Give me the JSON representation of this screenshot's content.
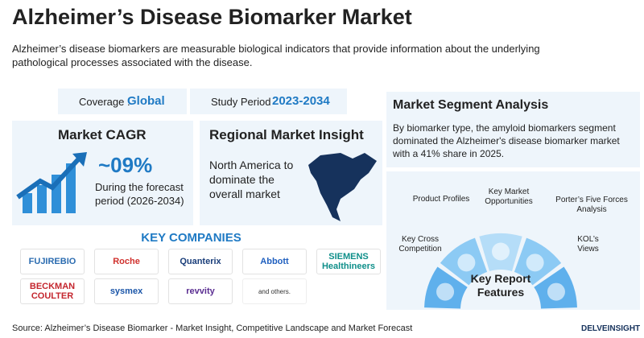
{
  "header": {
    "title": "Alzheimer’s Disease Biomarker Market",
    "description": "Alzheimer’s disease biomarkers are measurable biological indicators that provide information about the underlying pathological processes associated with the disease."
  },
  "coverage": {
    "label": "Coverage :",
    "value": "Global"
  },
  "study_period": {
    "label": "Study Period",
    "value": "2023-2034"
  },
  "market_cagr": {
    "title": "Market CAGR",
    "value": "~09%",
    "note": "During the forecast period (2026-2034)"
  },
  "regional": {
    "title": "Regional Market Insight",
    "text": "North America to dominate the overall market"
  },
  "key_companies": {
    "title": "KEY COMPANIES",
    "companies": [
      "FUJIREBIO",
      "Roche",
      "Quanterix",
      "Abbott",
      "SIEMENS Healthineers",
      "BECKMAN COULTER",
      "sysmex",
      "revvity",
      "and others."
    ]
  },
  "segment": {
    "title": "Market Segment Analysis",
    "text": "By biomarker type, the amyloid biomarkers segment dominated the Alzheimer's disease biomarker market with a 41% share in 2025."
  },
  "features": {
    "title": "Key Report Features",
    "items": [
      "Key Cross Competition",
      "Product Profiles",
      "Key Market Opportunities",
      "Porter’s Five Forces Analysis",
      "KOL’s Views"
    ]
  },
  "footer": {
    "source": "Source: Alzheimer’s Disease Biomarker - Market Insight, Competitive Landscape and Market Forecast",
    "brand": "DELVEINSIGHT"
  }
}
